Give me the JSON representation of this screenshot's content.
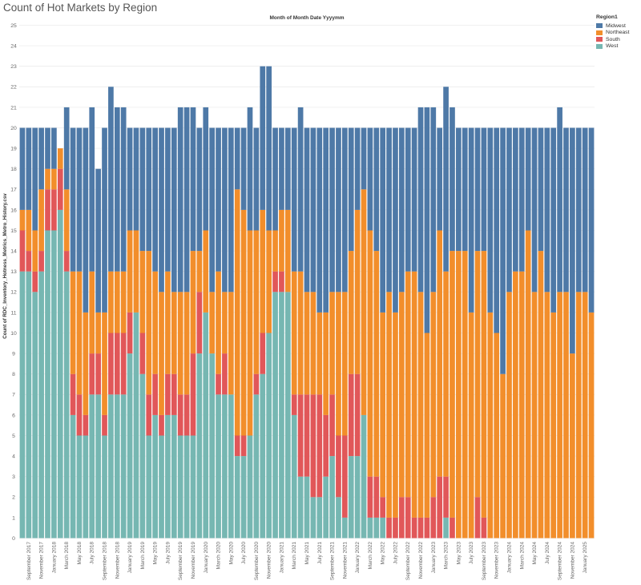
{
  "chart_data": {
    "type": "bar",
    "stacked": true,
    "title": "Count of Hot Markets by Region",
    "column_header": "Month of Month Date Yyyymm",
    "ylabel": "Count of RDC_Inventory_Hotness_Metrics_Metro_History.csv",
    "ylim": [
      0,
      25
    ],
    "yticks": [
      0,
      1,
      2,
      3,
      4,
      5,
      6,
      7,
      8,
      9,
      10,
      11,
      12,
      13,
      14,
      15,
      16,
      17,
      18,
      19,
      20,
      21,
      22,
      23,
      24,
      25
    ],
    "grid": true,
    "legend_title": "Region1",
    "legend_position": "top-right",
    "categories": [
      "August 2017",
      "September 2017",
      "October 2017",
      "November 2017",
      "December 2017",
      "January 2018",
      "February 2018",
      "March 2018",
      "April 2018",
      "May 2018",
      "June 2018",
      "July 2018",
      "August 2018",
      "September 2018",
      "October 2018",
      "November 2018",
      "December 2018",
      "January 2019",
      "February 2019",
      "March 2019",
      "April 2019",
      "May 2019",
      "June 2019",
      "July 2019",
      "August 2019",
      "September 2019",
      "October 2019",
      "November 2019",
      "December 2019",
      "January 2020",
      "February 2020",
      "March 2020",
      "April 2020",
      "May 2020",
      "June 2020",
      "July 2020",
      "August 2020",
      "September 2020",
      "October 2020",
      "November 2020",
      "December 2020",
      "January 2021",
      "February 2021",
      "March 2021",
      "April 2021",
      "May 2021",
      "June 2021",
      "July 2021",
      "August 2021",
      "September 2021",
      "October 2021",
      "November 2021",
      "December 2021",
      "January 2022",
      "February 2022",
      "March 2022",
      "April 2022",
      "May 2022",
      "June 2022",
      "July 2022",
      "August 2022",
      "September 2022",
      "October 2022",
      "November 2022",
      "December 2022",
      "January 2023",
      "February 2023",
      "March 2023",
      "April 2023",
      "May 2023",
      "June 2023",
      "July 2023",
      "August 2023",
      "September 2023",
      "October 2023",
      "November 2023",
      "December 2023",
      "January 2024",
      "February 2024",
      "March 2024",
      "April 2024",
      "May 2024",
      "June 2024",
      "July 2024",
      "August 2024",
      "September 2024",
      "October 2024",
      "November 2024",
      "December 2024",
      "January 2025",
      "February 2025"
    ],
    "tick_labels": [
      "September 2017",
      "November 2017",
      "January 2018",
      "March 2018",
      "May 2018",
      "July 2018",
      "September 2018",
      "November 2018",
      "January 2019",
      "March 2019",
      "May 2019",
      "July 2019",
      "September 2019",
      "November 2019",
      "January 2020",
      "March 2020",
      "May 2020",
      "July 2020",
      "September 2020",
      "November 2020",
      "January 2021",
      "March 2021",
      "May 2021",
      "July 2021",
      "September 2021",
      "November 2021",
      "January 2022",
      "March 2022",
      "May 2022",
      "July 2022",
      "September 2022",
      "November 2022",
      "January 2023",
      "March 2023",
      "May 2023",
      "July 2023",
      "September 2023",
      "November 2023",
      "January 2024",
      "March 2024",
      "May 2024",
      "July 2024",
      "September 2024",
      "November 2024",
      "January 2025"
    ],
    "series": [
      {
        "name": "West",
        "color": "#76B7B2",
        "values": [
          13,
          13,
          12,
          13,
          15,
          15,
          16,
          13,
          6,
          5,
          5,
          7,
          7,
          5,
          7,
          7,
          7,
          9,
          11,
          8,
          5,
          6,
          5,
          6,
          6,
          5,
          5,
          5,
          9,
          11,
          9,
          7,
          7,
          7,
          4,
          4,
          5,
          7,
          8,
          10,
          12,
          12,
          12,
          6,
          3,
          3,
          2,
          2,
          3,
          4,
          2,
          1,
          4,
          4,
          6,
          1,
          1,
          1,
          0,
          0,
          0,
          0,
          0,
          0,
          0,
          0,
          0,
          1,
          0,
          0,
          0,
          0,
          0,
          0,
          0,
          0,
          0,
          0,
          0,
          0,
          0,
          0,
          0,
          0,
          0,
          0,
          0,
          0,
          0,
          0,
          0
        ]
      },
      {
        "name": "South",
        "color": "#E15759",
        "values": [
          2,
          1,
          1,
          1,
          2,
          2,
          2,
          1,
          2,
          2,
          1,
          2,
          2,
          1,
          3,
          3,
          3,
          2,
          0,
          2,
          2,
          2,
          1,
          2,
          2,
          2,
          2,
          4,
          3,
          0,
          0,
          1,
          2,
          0,
          1,
          1,
          0,
          1,
          2,
          0,
          1,
          1,
          0,
          1,
          4,
          4,
          5,
          5,
          3,
          3,
          3,
          4,
          4,
          4,
          0,
          2,
          2,
          1,
          1,
          1,
          2,
          2,
          1,
          1,
          1,
          2,
          3,
          2,
          1,
          0,
          0,
          0,
          2,
          1,
          0,
          0,
          0,
          0,
          0,
          0,
          0,
          0,
          0,
          0,
          0,
          0,
          0,
          0,
          0,
          0,
          0
        ]
      },
      {
        "name": "Northeast",
        "color": "#F28E2B",
        "values": [
          1,
          2,
          2,
          3,
          1,
          1,
          1,
          3,
          5,
          6,
          5,
          4,
          2,
          5,
          3,
          3,
          3,
          4,
          4,
          4,
          7,
          5,
          6,
          5,
          4,
          5,
          5,
          5,
          2,
          4,
          3,
          5,
          3,
          5,
          12,
          11,
          10,
          7,
          6,
          5,
          2,
          3,
          4,
          6,
          6,
          5,
          5,
          4,
          5,
          5,
          7,
          7,
          6,
          8,
          11,
          12,
          11,
          9,
          11,
          10,
          10,
          11,
          12,
          11,
          9,
          10,
          12,
          10,
          13,
          14,
          14,
          11,
          12,
          13,
          11,
          10,
          8,
          12,
          13,
          13,
          15,
          12,
          14,
          12,
          11,
          12,
          12,
          9,
          12,
          12,
          11
        ]
      },
      {
        "name": "Midwest",
        "color": "#4E79A7",
        "values": [
          4,
          4,
          5,
          3,
          2,
          2,
          0,
          4,
          7,
          7,
          9,
          8,
          7,
          9,
          9,
          8,
          8,
          5,
          5,
          6,
          6,
          7,
          8,
          7,
          8,
          9,
          9,
          7,
          6,
          6,
          8,
          7,
          8,
          8,
          3,
          4,
          6,
          5,
          7,
          8,
          5,
          4,
          4,
          7,
          8,
          8,
          8,
          9,
          9,
          8,
          8,
          8,
          6,
          4,
          3,
          5,
          6,
          9,
          8,
          9,
          8,
          7,
          7,
          9,
          11,
          9,
          5,
          9,
          7,
          6,
          6,
          9,
          6,
          6,
          9,
          10,
          12,
          8,
          7,
          7,
          5,
          8,
          6,
          8,
          9,
          9,
          8,
          11,
          8,
          8,
          9
        ]
      }
    ]
  }
}
